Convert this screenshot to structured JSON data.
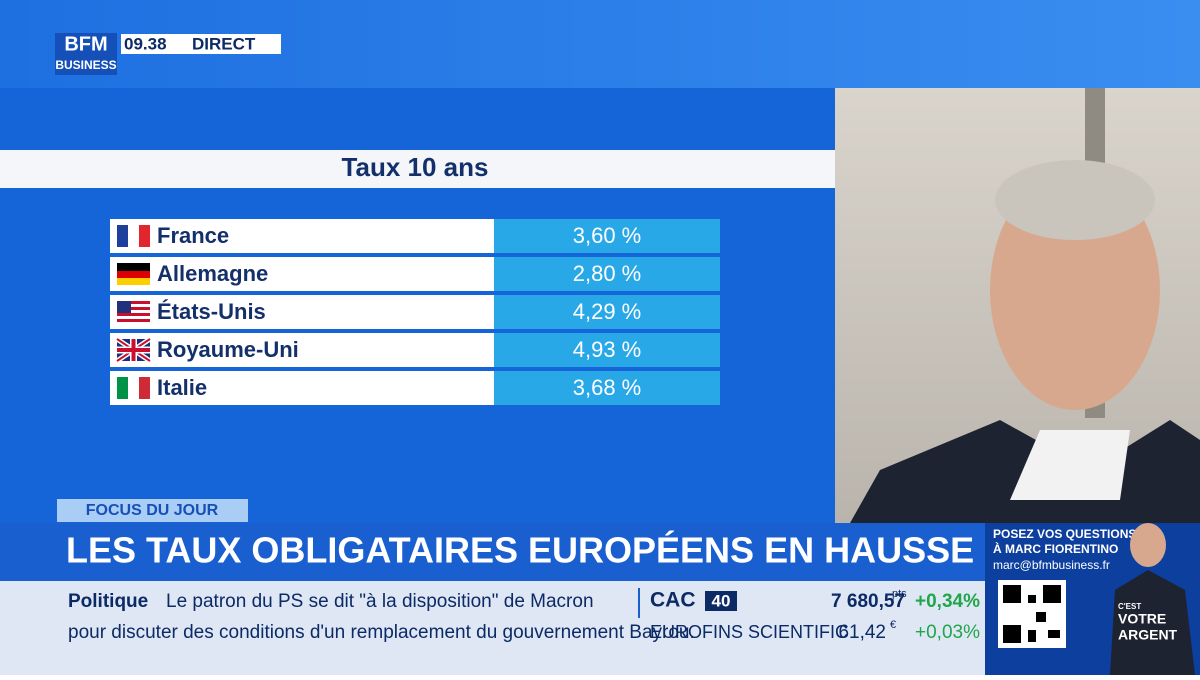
{
  "header": {
    "logo_top": "BFM",
    "logo_bottom": "BUSINESS",
    "time": "09.38",
    "live": "DIRECT"
  },
  "table": {
    "title": "Taux 10 ans",
    "rows": [
      [
        "France",
        "3,60 %"
      ],
      [
        "Allemagne",
        "2,80 %"
      ],
      [
        "États-Unis",
        "4,29 %"
      ],
      [
        "Royaume-Uni",
        "4,93 %"
      ],
      [
        "Italie",
        "3,68 %"
      ]
    ]
  },
  "banner": {
    "tag": "FOCUS DU JOUR",
    "headline": "LES TAUX OBLIGATAIRES EUROPÉENS EN HAUSSE"
  },
  "ticker": {
    "category": "Politique",
    "line1": "Le patron du PS se dit \"à la disposition\" de Macron",
    "line2": "pour discuter des conditions d'un remplacement du gouvernement Bayrou."
  },
  "market": {
    "index_name": "CAC",
    "index_badge": "40",
    "index_value": "7 680,57",
    "index_unit": "pts",
    "index_change": "+0,34%",
    "stock_name": "EUROFINS SCIENTIFIC",
    "stock_value": "61,42",
    "stock_unit": "€",
    "stock_change": "+0,03%"
  },
  "promo": {
    "line1": "POSEZ VOS QUESTIONS",
    "line2": "À MARC FIORENTINO",
    "email": "marc@bfmbusiness.fr",
    "show1": "C'EST",
    "show2": "VOTRE",
    "show3": "ARGENT"
  }
}
